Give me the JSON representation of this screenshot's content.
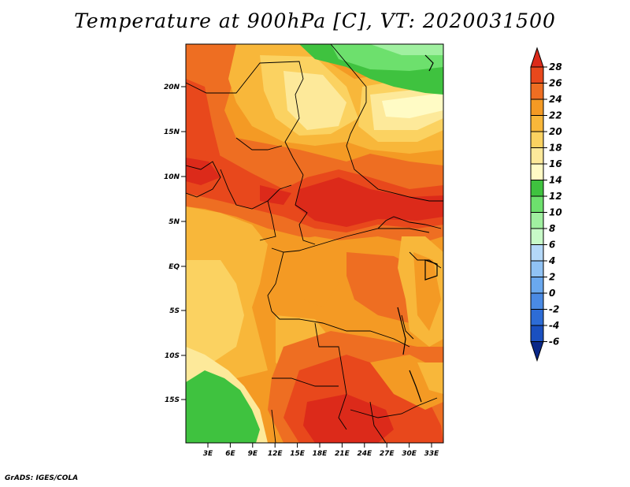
{
  "title": "Temperature at 900hPa [C], VT: 2020031500",
  "credit": "GrADS: IGES/COLA",
  "map": {
    "lat_labels": [
      "20N",
      "15N",
      "10N",
      "5N",
      "EQ",
      "5S",
      "10S",
      "15S"
    ],
    "lon_labels": [
      "3E",
      "6E",
      "9E",
      "12E",
      "15E",
      "18E",
      "21E",
      "24E",
      "27E",
      "30E",
      "33E"
    ]
  },
  "colorbar": {
    "labels": [
      "28",
      "26",
      "24",
      "22",
      "20",
      "18",
      "16",
      "14",
      "12",
      "10",
      "8",
      "6",
      "4",
      "2",
      "0",
      "-2",
      "-4",
      "-6"
    ],
    "colors": [
      "#dc2a1a",
      "#e8481c",
      "#ee6e22",
      "#f49a24",
      "#f8b73a",
      "#fbd261",
      "#fde99a",
      "#fffbc5",
      "#3fc23f",
      "#6de06d",
      "#a0f0a0",
      "#c8fac8",
      "#b4d8f8",
      "#90c2f4",
      "#6aa8ee",
      "#4a8ae4",
      "#2d6cd6",
      "#1a50c0",
      "#0a2888"
    ]
  }
}
